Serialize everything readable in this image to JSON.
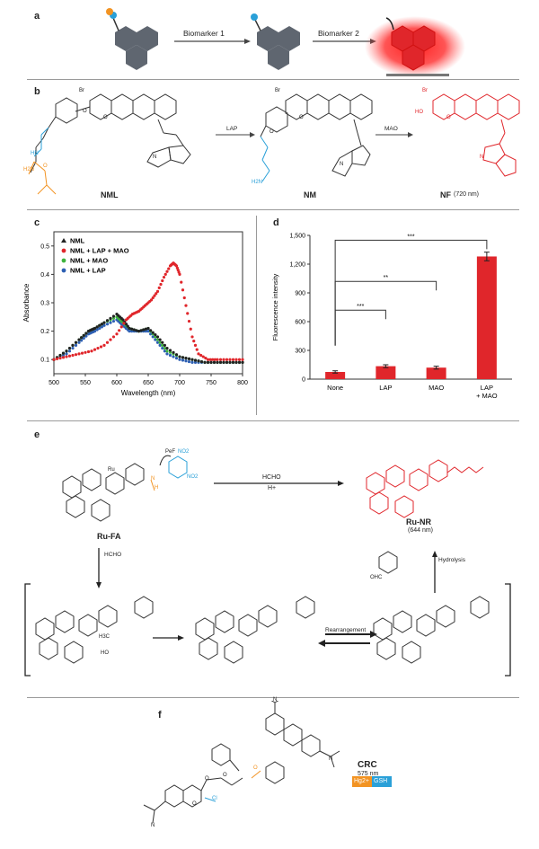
{
  "panels": {
    "a": "a",
    "b": "b",
    "c": "c",
    "d": "d",
    "e": "e",
    "f": "f"
  },
  "colors": {
    "red": "#e0262b",
    "blue": "#2aa0d8",
    "orange": "#f29322",
    "gray": "#5f6670",
    "black": "#222222",
    "green": "#3db33d",
    "darkblue": "#2d5fb3"
  },
  "panel_a": {
    "arrow1": "Biomarker 1",
    "arrow2": "Biomarker 2"
  },
  "panel_b": {
    "labels": {
      "br1": "Br",
      "br2": "Br",
      "br3": "Br",
      "o1": "O",
      "o2": "O",
      "o3": "O",
      "o4": "O",
      "o5": "O",
      "o6": "O",
      "ho": "HO",
      "hn": "HN",
      "h2n": "H2N",
      "h2n2": "H2N",
      "nplus1": "N",
      "nplus2": "N",
      "nplus3": "N"
    },
    "arrow_lap": "LAP",
    "arrow_mao": "MAO",
    "names": {
      "nml": "NML",
      "nm": "NM",
      "nf": "NF",
      "nf_wl": "(720 nm)"
    }
  },
  "panel_c": {
    "chart_data": {
      "type": "scatter",
      "xlabel": "Wavelength (nm)",
      "ylabel": "Absorbance",
      "xlim": [
        500,
        800
      ],
      "ylim": [
        0.05,
        0.55
      ],
      "xticks": [
        500,
        550,
        600,
        650,
        700,
        750,
        800
      ],
      "yticks": [
        0.1,
        0.2,
        0.3,
        0.4,
        0.5
      ],
      "legend_position": "top-left",
      "series": [
        {
          "name": "NML",
          "color": "#222222",
          "x": [
            500,
            520,
            540,
            555,
            565,
            580,
            600,
            610,
            620,
            635,
            650,
            665,
            680,
            700,
            720,
            740,
            760,
            780,
            800
          ],
          "y": [
            0.1,
            0.13,
            0.17,
            0.2,
            0.21,
            0.23,
            0.26,
            0.24,
            0.21,
            0.2,
            0.21,
            0.18,
            0.14,
            0.11,
            0.1,
            0.09,
            0.09,
            0.09,
            0.09
          ]
        },
        {
          "name": "NML + LAP + MAO",
          "color": "#e0262b",
          "x": [
            500,
            520,
            540,
            560,
            580,
            600,
            615,
            625,
            635,
            645,
            655,
            665,
            675,
            685,
            690,
            695,
            700,
            710,
            720,
            730,
            745,
            760,
            780,
            800
          ],
          "y": [
            0.1,
            0.11,
            0.12,
            0.13,
            0.15,
            0.19,
            0.24,
            0.26,
            0.27,
            0.29,
            0.31,
            0.34,
            0.39,
            0.43,
            0.44,
            0.43,
            0.4,
            0.29,
            0.18,
            0.12,
            0.1,
            0.1,
            0.1,
            0.1
          ]
        },
        {
          "name": "NML + MAO",
          "color": "#3db33d",
          "x": [
            500,
            520,
            540,
            555,
            565,
            580,
            600,
            610,
            620,
            635,
            650,
            665,
            680,
            700,
            720,
            740,
            760,
            780,
            800
          ],
          "y": [
            0.1,
            0.13,
            0.17,
            0.2,
            0.21,
            0.23,
            0.25,
            0.23,
            0.21,
            0.2,
            0.21,
            0.17,
            0.13,
            0.11,
            0.1,
            0.09,
            0.09,
            0.09,
            0.09
          ]
        },
        {
          "name": "NML + LAP",
          "color": "#2d5fb3",
          "x": [
            500,
            520,
            540,
            555,
            565,
            580,
            600,
            610,
            620,
            635,
            650,
            665,
            680,
            700,
            720,
            740,
            760,
            780,
            800
          ],
          "y": [
            0.1,
            0.12,
            0.16,
            0.19,
            0.2,
            0.22,
            0.24,
            0.22,
            0.2,
            0.2,
            0.2,
            0.16,
            0.12,
            0.1,
            0.09,
            0.09,
            0.09,
            0.09,
            0.09
          ]
        }
      ]
    }
  },
  "panel_d": {
    "chart_data": {
      "type": "bar",
      "ylabel": "Fluorescence intensity",
      "categories": [
        "None",
        "LAP",
        "MAO",
        "LAP\n+ MAO"
      ],
      "values": [
        75,
        135,
        120,
        1280
      ],
      "errors": [
        12,
        15,
        15,
        45
      ],
      "ylim": [
        0,
        1500
      ],
      "yticks": [
        0,
        300,
        600,
        900,
        "1,200",
        "1,500"
      ],
      "bar_color": "#e0262b",
      "significance": [
        "***",
        "**",
        "***"
      ]
    },
    "cat_lines": [
      [
        "None"
      ],
      [
        "LAP"
      ],
      [
        "MAO"
      ],
      [
        "LAP",
        "+ MAO"
      ]
    ]
  },
  "panel_e": {
    "labels": {
      "pef": "PeF",
      "no2a": "NO2",
      "no2b": "NO2",
      "nh": "N",
      "h": "H",
      "hcho": "HCHO",
      "hplus": "H+",
      "hcho2": "HCHO",
      "hydrolysis": "Hydrolysis",
      "ohc": "OHC",
      "rearr": "Rearrangement",
      "ru": "Ru",
      "h3c": "H3C",
      "ho": "HO"
    },
    "names": {
      "rufa": "Ru-FA",
      "runr": "Ru-NR",
      "runr_wl": "(644 nm)"
    }
  },
  "panel_f": {
    "name": "CRC",
    "wavelength": "575 nm",
    "badges": [
      "Hg2+",
      "GSH"
    ],
    "labels": {
      "n1": "N",
      "n2": "N",
      "n3": "N",
      "o1": "O",
      "o2": "O",
      "o3": "O",
      "o4": "O",
      "cl": "Cl"
    }
  }
}
